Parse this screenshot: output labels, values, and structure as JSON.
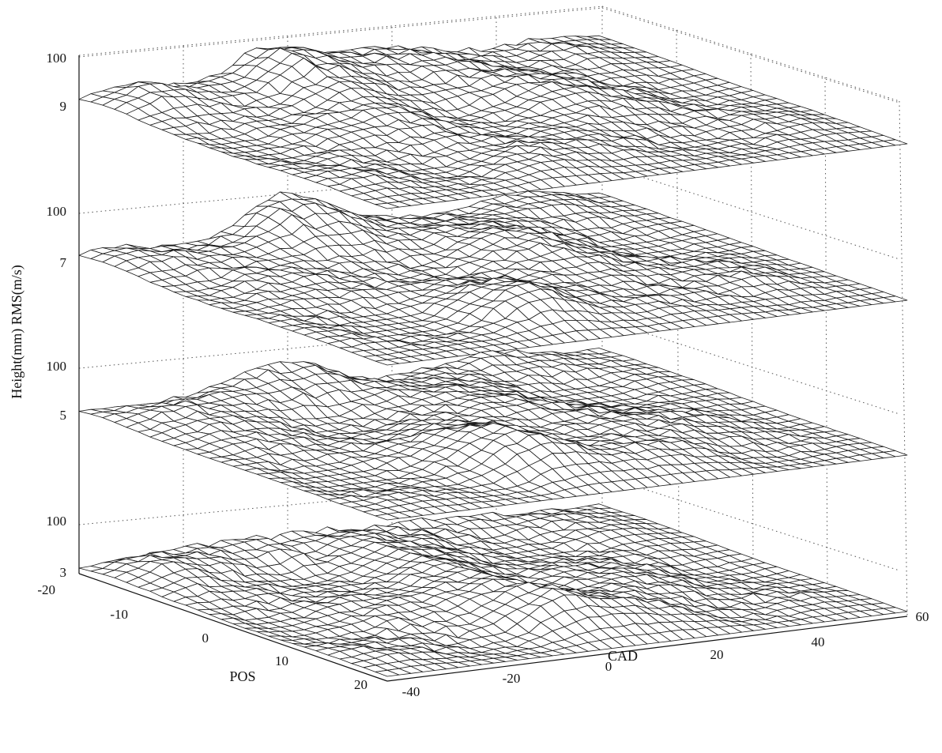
{
  "chart_data": {
    "type": "surface",
    "z_axis_label": "Height(mm) RMS(m/s)",
    "x_axis_label": "CAD",
    "y_axis_label": "POS",
    "x_ticks": [
      "-40",
      "-20",
      "0",
      "20",
      "40",
      "60"
    ],
    "y_ticks": [
      "-20",
      "-10",
      "0",
      "10",
      "20"
    ],
    "xlim": [
      -40,
      60
    ],
    "ylim": [
      -20,
      20
    ],
    "grid": true,
    "layers": [
      {
        "rms_label": "9",
        "height_label": "100",
        "rms": 9
      },
      {
        "rms_label": "7",
        "height_label": "100",
        "rms": 7
      },
      {
        "rms_label": "5",
        "height_label": "100",
        "rms": 5
      },
      {
        "rms_label": "3",
        "height_label": "100",
        "rms": 3
      }
    ],
    "surface_description_note": ""
  },
  "colors": {
    "mesh_stroke": "#1a1a1a",
    "mesh_fill": "#ffffff",
    "background": "#ffffff"
  }
}
